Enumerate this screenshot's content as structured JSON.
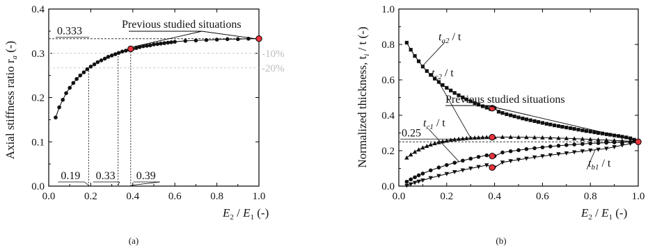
{
  "chart_data": [
    {
      "type": "line",
      "panel_label": "(a)",
      "ylabel": "Axial stiffness ratio r",
      "ylabel_sub": "a",
      "ylabel_unit": "(-)",
      "xlabel_E2": "E",
      "xlabel_sub2": "2",
      "xlabel_E1": "E",
      "xlabel_sub1": "1",
      "xlabel_unit": "(-)",
      "xlim": [
        0.0,
        1.0
      ],
      "ylim": [
        0.0,
        0.4
      ],
      "xticks": [
        "0.0",
        "0.2",
        "0.4",
        "0.6",
        "0.8",
        "1.0"
      ],
      "yticks": [
        "0.0",
        "0.1",
        "0.2",
        "0.3",
        "0.4"
      ],
      "series": [
        {
          "x": [
            0.033,
            0.05,
            0.067,
            0.083,
            0.1,
            0.117,
            0.133,
            0.15,
            0.167,
            0.183,
            0.2,
            0.217,
            0.233,
            0.25,
            0.267,
            0.283,
            0.3,
            0.317,
            0.333,
            0.35,
            0.367,
            0.383,
            0.4,
            0.417,
            0.433,
            0.45,
            0.467,
            0.483,
            0.5,
            0.517,
            0.533,
            0.55,
            0.567,
            0.583,
            0.6,
            0.65,
            0.7,
            0.75,
            0.8,
            0.85,
            0.9,
            0.95,
            1.0
          ],
          "y": [
            0.155,
            0.178,
            0.195,
            0.21,
            0.222,
            0.233,
            0.242,
            0.25,
            0.257,
            0.264,
            0.27,
            0.275,
            0.28,
            0.284,
            0.288,
            0.292,
            0.295,
            0.298,
            0.301,
            0.304,
            0.306,
            0.308,
            0.31,
            0.312,
            0.314,
            0.316,
            0.317,
            0.318,
            0.32,
            0.321,
            0.322,
            0.323,
            0.324,
            0.325,
            0.326,
            0.328,
            0.329,
            0.33,
            0.331,
            0.332,
            0.332,
            0.333,
            0.333
          ]
        }
      ],
      "highlight_points": [
        {
          "x": 0.39,
          "y": 0.31
        },
        {
          "x": 1.0,
          "y": 0.333
        }
      ],
      "ref_value_label": "0.333",
      "ref_lines": [
        {
          "y": 0.3,
          "label": "-10%"
        },
        {
          "y": 0.267,
          "label": "-20%"
        }
      ],
      "drop_lines": [
        {
          "x": 0.19,
          "y": 0.267,
          "label": "0.19"
        },
        {
          "x": 0.33,
          "y": 0.3,
          "label": "0.33"
        },
        {
          "x": 0.39,
          "y": 0.31,
          "label": "0.39"
        }
      ],
      "annotation": "Previous studied situations"
    },
    {
      "type": "line",
      "panel_label": "(b)",
      "ylabel": "Normalized thickness, t",
      "ylabel_sub": "i",
      "ylabel_unit": "/ t (-)",
      "xlabel_E2": "E",
      "xlabel_sub2": "2",
      "xlabel_E1": "E",
      "xlabel_sub1": "1",
      "xlabel_unit": "(-)",
      "xlim": [
        0.0,
        1.0
      ],
      "ylim": [
        0.0,
        1.0
      ],
      "xticks": [
        "0.0",
        "0.2",
        "0.4",
        "0.6",
        "0.8",
        "1.0"
      ],
      "yticks": [
        "0.0",
        "0.2",
        "0.4",
        "0.6",
        "0.8",
        "1.0"
      ],
      "series": [
        {
          "label": "t",
          "sub": "a2",
          "suffix": "/ t",
          "marker": "square",
          "x": [
            0.033,
            0.05,
            0.067,
            0.083,
            0.1,
            0.117,
            0.133,
            0.15,
            0.167,
            0.183,
            0.2,
            0.217,
            0.233,
            0.25,
            0.267,
            0.283,
            0.3,
            0.317,
            0.333,
            0.35,
            0.367,
            0.383,
            0.4,
            0.417,
            0.433,
            0.45,
            0.467,
            0.483,
            0.5,
            0.517,
            0.533,
            0.55,
            0.567,
            0.583,
            0.6,
            0.617,
            0.633,
            0.65,
            0.667,
            0.683,
            0.7,
            0.717,
            0.733,
            0.75,
            0.767,
            0.783,
            0.8,
            0.817,
            0.833,
            0.85,
            0.867,
            0.883,
            0.9,
            0.917,
            0.933,
            0.95,
            0.967,
            0.983,
            1.0
          ],
          "y": [
            0.81,
            0.77,
            0.735,
            0.705,
            0.675,
            0.65,
            0.628,
            0.607,
            0.588,
            0.571,
            0.555,
            0.54,
            0.526,
            0.513,
            0.501,
            0.49,
            0.479,
            0.469,
            0.46,
            0.451,
            0.443,
            0.435,
            0.44,
            0.42,
            0.413,
            0.406,
            0.4,
            0.394,
            0.388,
            0.382,
            0.377,
            0.372,
            0.367,
            0.362,
            0.357,
            0.352,
            0.348,
            0.343,
            0.339,
            0.335,
            0.331,
            0.327,
            0.323,
            0.319,
            0.315,
            0.311,
            0.308,
            0.304,
            0.3,
            0.297,
            0.293,
            0.29,
            0.286,
            0.283,
            0.279,
            0.275,
            0.27,
            0.262,
            0.25
          ]
        },
        {
          "label": "t",
          "sub": "c2",
          "suffix": "/ t",
          "marker": "triangle-up",
          "x": [
            0.033,
            0.05,
            0.067,
            0.083,
            0.1,
            0.117,
            0.133,
            0.15,
            0.167,
            0.183,
            0.2,
            0.217,
            0.233,
            0.25,
            0.267,
            0.283,
            0.3,
            0.317,
            0.333,
            0.35,
            0.367,
            0.383,
            0.4,
            0.433,
            0.467,
            0.5,
            0.533,
            0.567,
            0.6,
            0.633,
            0.667,
            0.7,
            0.733,
            0.767,
            0.8,
            0.833,
            0.867,
            0.9,
            0.933,
            0.967,
            1.0
          ],
          "y": [
            0.16,
            0.178,
            0.193,
            0.206,
            0.217,
            0.226,
            0.234,
            0.241,
            0.247,
            0.252,
            0.256,
            0.26,
            0.263,
            0.266,
            0.268,
            0.27,
            0.272,
            0.273,
            0.274,
            0.275,
            0.276,
            0.276,
            0.276,
            0.277,
            0.277,
            0.276,
            0.276,
            0.275,
            0.274,
            0.273,
            0.271,
            0.27,
            0.268,
            0.266,
            0.264,
            0.262,
            0.26,
            0.258,
            0.256,
            0.253,
            0.25
          ]
        },
        {
          "label": "t",
          "sub": "c1",
          "suffix": "/ t",
          "marker": "circle",
          "x": [
            0.033,
            0.05,
            0.067,
            0.083,
            0.1,
            0.133,
            0.167,
            0.2,
            0.233,
            0.267,
            0.3,
            0.333,
            0.367,
            0.4,
            0.433,
            0.467,
            0.5,
            0.533,
            0.567,
            0.6,
            0.633,
            0.667,
            0.7,
            0.733,
            0.767,
            0.8,
            0.833,
            0.867,
            0.9,
            0.933,
            0.967,
            1.0
          ],
          "y": [
            0.025,
            0.038,
            0.05,
            0.061,
            0.071,
            0.089,
            0.105,
            0.119,
            0.132,
            0.144,
            0.155,
            0.165,
            0.174,
            0.17,
            0.19,
            0.197,
            0.203,
            0.209,
            0.214,
            0.219,
            0.224,
            0.228,
            0.232,
            0.235,
            0.238,
            0.241,
            0.243,
            0.245,
            0.247,
            0.248,
            0.249,
            0.25
          ]
        },
        {
          "label": "t",
          "sub": "b1",
          "suffix": "/ t",
          "marker": "triangle-down",
          "x": [
            0.033,
            0.05,
            0.067,
            0.083,
            0.1,
            0.133,
            0.167,
            0.2,
            0.233,
            0.267,
            0.3,
            0.333,
            0.367,
            0.4,
            0.433,
            0.467,
            0.5,
            0.533,
            0.567,
            0.6,
            0.633,
            0.667,
            0.7,
            0.733,
            0.767,
            0.8,
            0.833,
            0.867,
            0.9,
            0.933,
            0.967,
            1.0
          ],
          "y": [
            0.003,
            0.011,
            0.019,
            0.026,
            0.033,
            0.046,
            0.058,
            0.069,
            0.08,
            0.09,
            0.1,
            0.109,
            0.118,
            0.105,
            0.134,
            0.142,
            0.149,
            0.156,
            0.163,
            0.169,
            0.175,
            0.181,
            0.186,
            0.192,
            0.197,
            0.202,
            0.207,
            0.212,
            0.221,
            0.231,
            0.24,
            0.25
          ]
        }
      ],
      "highlight_points": [
        {
          "x": 0.39,
          "y": 0.44
        },
        {
          "x": 0.39,
          "y": 0.276
        },
        {
          "x": 0.39,
          "y": 0.17
        },
        {
          "x": 0.39,
          "y": 0.105
        },
        {
          "x": 1.0,
          "y": 0.25
        }
      ],
      "ref_value_label": "0.25",
      "annotation": "Previous studied situations"
    }
  ]
}
